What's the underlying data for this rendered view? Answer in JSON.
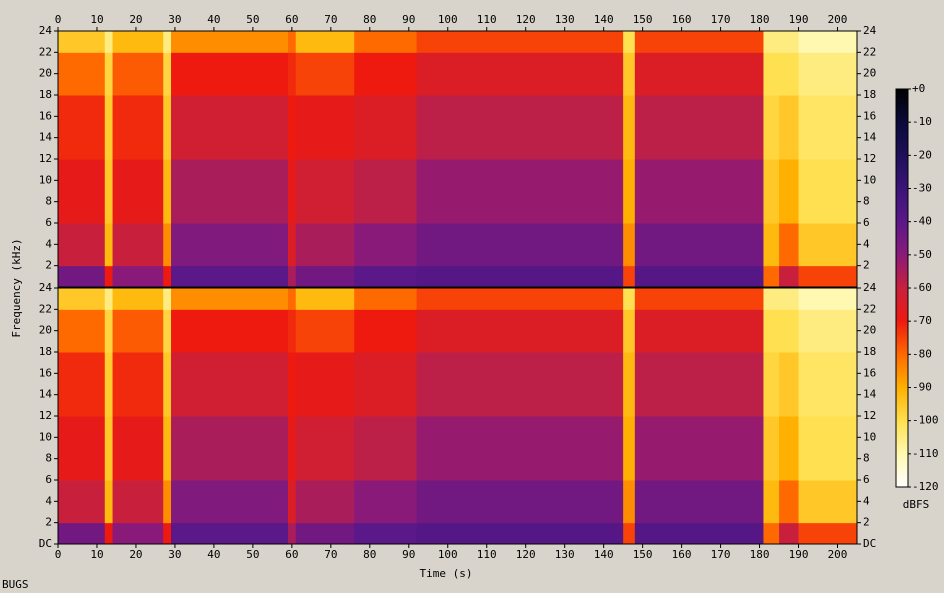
{
  "chart_data": {
    "type": "spectrogram",
    "x_label": "Time (s)",
    "y_label": "Frequency (kHz)",
    "colorbar_label": "dBFS",
    "footer": "BUGS",
    "xlim": [
      0,
      205
    ],
    "xticks": [
      0,
      10,
      20,
      30,
      40,
      50,
      60,
      70,
      80,
      90,
      100,
      110,
      120,
      130,
      140,
      150,
      160,
      170,
      180,
      190,
      200
    ],
    "ylim": [
      0,
      24
    ],
    "panels": [
      {
        "yticks": [
          2,
          4,
          6,
          8,
          10,
          12,
          14,
          16,
          18,
          20,
          22,
          24
        ]
      },
      {
        "yticks": [
          {
            "value": 0,
            "label": "DC"
          },
          2,
          4,
          6,
          8,
          10,
          12,
          14,
          16,
          18,
          20,
          22,
          24
        ]
      }
    ],
    "time_edges": [
      0,
      12,
      14,
      27,
      29,
      59,
      61,
      76,
      92,
      145,
      148,
      181,
      185,
      190,
      205
    ],
    "freq_edges": [
      0,
      2,
      6,
      12,
      18,
      22,
      24
    ],
    "levels": [
      [
        -45,
        -60,
        -68,
        -72,
        -80,
        -95
      ],
      [
        -70,
        -92,
        -95,
        -96,
        -98,
        -105
      ],
      [
        -50,
        -60,
        -68,
        -72,
        -78,
        -92
      ],
      [
        -70,
        -85,
        -92,
        -95,
        -98,
        -105
      ],
      [
        -40,
        -48,
        -55,
        -62,
        -70,
        -85
      ],
      [
        -55,
        -65,
        -68,
        -70,
        -72,
        -80
      ],
      [
        -45,
        -55,
        -62,
        -68,
        -75,
        -92
      ],
      [
        -40,
        -50,
        -58,
        -65,
        -70,
        -80
      ],
      [
        -38,
        -45,
        -52,
        -58,
        -65,
        -75
      ],
      [
        -75,
        -85,
        -90,
        -92,
        -95,
        -100
      ],
      [
        -38,
        -45,
        -52,
        -58,
        -65,
        -75
      ],
      [
        -80,
        -92,
        -95,
        -98,
        -100,
        -105
      ],
      [
        -60,
        -80,
        -90,
        -95,
        -100,
        -105
      ],
      [
        -75,
        -95,
        -100,
        -102,
        -105,
        -110
      ]
    ],
    "clim": [
      -120,
      0
    ],
    "cticks": [
      {
        "value": 0,
        "label": "+0"
      },
      -10,
      -20,
      -30,
      -40,
      -50,
      -60,
      -70,
      -80,
      -90,
      -100,
      -110,
      -120
    ],
    "colorscale": [
      {
        "value": 0,
        "color": "#000000"
      },
      {
        "value": -10,
        "color": "#0a0a3a"
      },
      {
        "value": -20,
        "color": "#1e0f5a"
      },
      {
        "value": -30,
        "color": "#3a1478"
      },
      {
        "value": -40,
        "color": "#5a1888"
      },
      {
        "value": -50,
        "color": "#8a1a7a"
      },
      {
        "value": -60,
        "color": "#c8203c"
      },
      {
        "value": -70,
        "color": "#ee1a10"
      },
      {
        "value": -80,
        "color": "#ff6a00"
      },
      {
        "value": -90,
        "color": "#ffb000"
      },
      {
        "value": -100,
        "color": "#ffe050"
      },
      {
        "value": -110,
        "color": "#fff8b0"
      },
      {
        "value": -120,
        "color": "#ffffff"
      }
    ]
  }
}
